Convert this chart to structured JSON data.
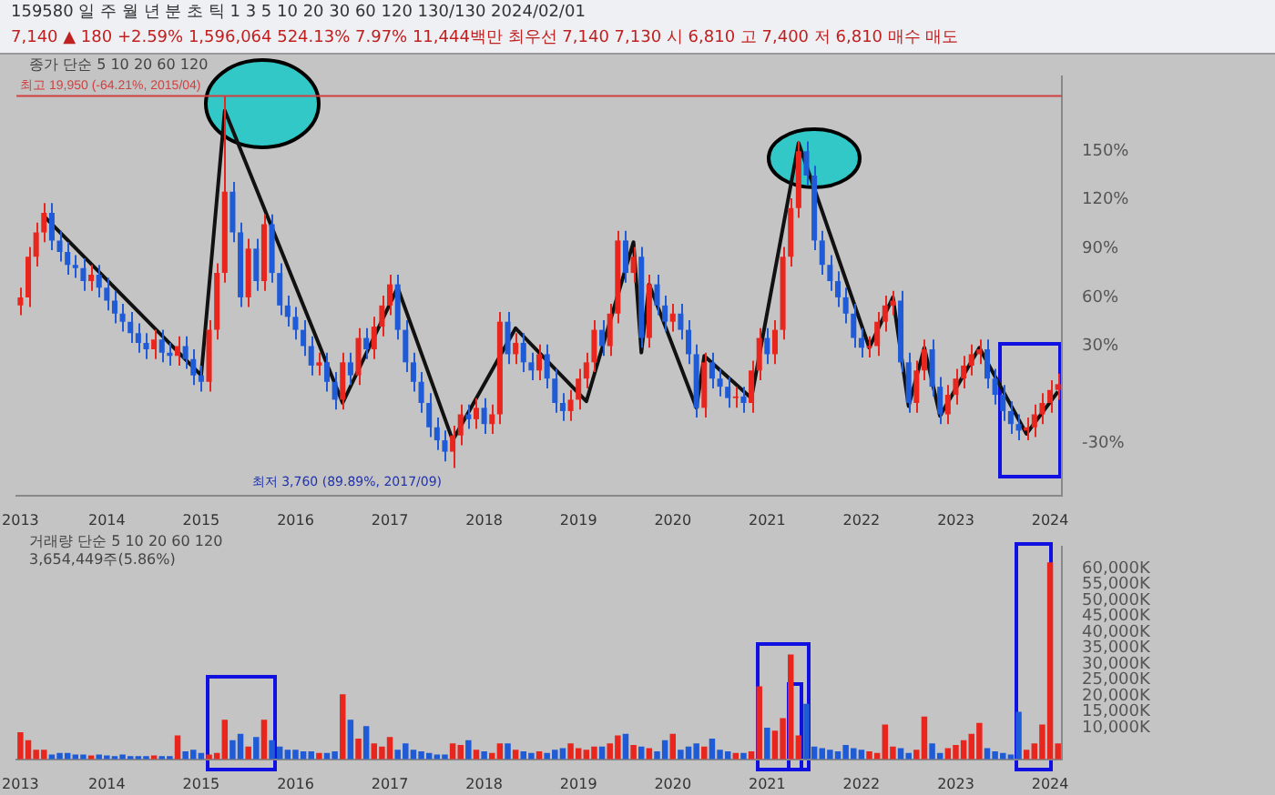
{
  "chart_data": [
    {
      "type": "candlestick",
      "categories": [
        "2013",
        null,
        null,
        null,
        null,
        null,
        null,
        null,
        null,
        null,
        null,
        "2014",
        null,
        null,
        null,
        null,
        null,
        null,
        null,
        null,
        null,
        null,
        null,
        "2015",
        null,
        null,
        null,
        null,
        null,
        null,
        null,
        null,
        null,
        null,
        null,
        "2016",
        null,
        null,
        null,
        null,
        null,
        null,
        null,
        null,
        null,
        null,
        null,
        "2017",
        null,
        null,
        null,
        null,
        null,
        null,
        null,
        null,
        null,
        null,
        null,
        "2018",
        null,
        null,
        null,
        null,
        null,
        null,
        null,
        null,
        null,
        null,
        null,
        "2019",
        null,
        null,
        null,
        null,
        null,
        null,
        null,
        null,
        null,
        null,
        null,
        "2020",
        null,
        null,
        null,
        null,
        null,
        null,
        null,
        null,
        null,
        null,
        null,
        "2021",
        null,
        null,
        null,
        null,
        null,
        null,
        null,
        null,
        null,
        null,
        null,
        "2022",
        null,
        null,
        null,
        null,
        null,
        null,
        null,
        null,
        null,
        null,
        null,
        "2023",
        null,
        null,
        null,
        null,
        null,
        null,
        null,
        null,
        null,
        null,
        null,
        "2024",
        null
      ],
      "ohlc": [
        [
          55,
          66,
          49,
          60
        ],
        [
          60,
          91,
          54,
          85
        ],
        [
          85,
          106,
          79,
          100
        ],
        [
          100,
          118,
          94,
          112
        ],
        [
          112,
          118,
          89,
          95
        ],
        [
          95,
          101,
          82,
          88
        ],
        [
          88,
          94,
          74,
          80
        ],
        [
          80,
          86,
          72,
          78
        ],
        [
          78,
          84,
          64,
          70
        ],
        [
          70,
          80,
          64,
          74
        ],
        [
          74,
          80,
          60,
          66
        ],
        [
          66,
          72,
          52,
          58
        ],
        [
          58,
          64,
          44,
          50
        ],
        [
          50,
          56,
          39,
          45
        ],
        [
          45,
          51,
          32,
          38
        ],
        [
          38,
          44,
          26,
          32
        ],
        [
          32,
          38,
          22,
          28
        ],
        [
          28,
          40,
          22,
          34
        ],
        [
          34,
          40,
          20,
          26
        ],
        [
          26,
          32,
          18,
          24
        ],
        [
          24,
          36,
          18,
          30
        ],
        [
          30,
          36,
          16,
          22
        ],
        [
          22,
          28,
          6,
          12
        ],
        [
          12,
          18,
          2,
          8
        ],
        [
          8,
          46,
          2,
          40
        ],
        [
          40,
          81,
          34,
          75
        ],
        [
          75,
          184,
          69,
          125
        ],
        [
          125,
          131,
          94,
          100
        ],
        [
          100,
          106,
          54,
          60
        ],
        [
          60,
          96,
          54,
          90
        ],
        [
          90,
          96,
          64,
          70
        ],
        [
          70,
          111,
          64,
          105
        ],
        [
          105,
          111,
          69,
          75
        ],
        [
          75,
          81,
          49,
          55
        ],
        [
          55,
          61,
          42,
          48
        ],
        [
          48,
          54,
          34,
          40
        ],
        [
          40,
          46,
          24,
          30
        ],
        [
          30,
          36,
          12,
          18
        ],
        [
          18,
          26,
          12,
          20
        ],
        [
          20,
          26,
          2,
          8
        ],
        [
          8,
          14,
          -9,
          -3
        ],
        [
          -3,
          26,
          -9,
          20
        ],
        [
          20,
          26,
          6,
          12
        ],
        [
          12,
          41,
          6,
          35
        ],
        [
          35,
          41,
          22,
          28
        ],
        [
          28,
          48,
          22,
          42
        ],
        [
          42,
          61,
          36,
          55
        ],
        [
          55,
          74,
          49,
          68
        ],
        [
          68,
          74,
          34,
          40
        ],
        [
          40,
          46,
          14,
          20
        ],
        [
          20,
          26,
          2,
          8
        ],
        [
          8,
          14,
          -11,
          -5
        ],
        [
          -5,
          1,
          -26,
          -20
        ],
        [
          -20,
          -14,
          -34,
          -28
        ],
        [
          -28,
          -22,
          -41,
          -35
        ],
        [
          -35,
          -19,
          -45,
          -25
        ],
        [
          -25,
          -6,
          -31,
          -12
        ],
        [
          -12,
          -6,
          -21,
          -15
        ],
        [
          -15,
          -2,
          -21,
          -8
        ],
        [
          -8,
          -2,
          -24,
          -18
        ],
        [
          -18,
          -6,
          -24,
          -12
        ],
        [
          -12,
          51,
          -18,
          45
        ],
        [
          45,
          51,
          19,
          25
        ],
        [
          25,
          38,
          19,
          32
        ],
        [
          32,
          38,
          14,
          20
        ],
        [
          20,
          26,
          9,
          15
        ],
        [
          15,
          31,
          9,
          25
        ],
        [
          25,
          31,
          4,
          10
        ],
        [
          10,
          16,
          -11,
          -5
        ],
        [
          -5,
          1,
          -16,
          -10
        ],
        [
          -10,
          3,
          -16,
          -3
        ],
        [
          -3,
          16,
          -9,
          10
        ],
        [
          10,
          26,
          4,
          20
        ],
        [
          20,
          46,
          14,
          40
        ],
        [
          40,
          46,
          24,
          30
        ],
        [
          30,
          56,
          24,
          50
        ],
        [
          50,
          101,
          44,
          95
        ],
        [
          95,
          101,
          69,
          75
        ],
        [
          75,
          91,
          69,
          85
        ],
        [
          85,
          91,
          29,
          35
        ],
        [
          35,
          74,
          29,
          68
        ],
        [
          68,
          74,
          49,
          55
        ],
        [
          55,
          61,
          39,
          45
        ],
        [
          45,
          56,
          39,
          50
        ],
        [
          50,
          56,
          34,
          40
        ],
        [
          40,
          46,
          19,
          25
        ],
        [
          25,
          31,
          -14,
          -8
        ],
        [
          -8,
          26,
          -14,
          20
        ],
        [
          20,
          26,
          4,
          10
        ],
        [
          10,
          16,
          -1,
          5
        ],
        [
          5,
          11,
          -8,
          -2
        ],
        [
          -2,
          5,
          -8,
          -1
        ],
        [
          -1,
          5,
          -11,
          -5
        ],
        [
          -5,
          21,
          -11,
          15
        ],
        [
          15,
          41,
          9,
          35
        ],
        [
          35,
          41,
          19,
          25
        ],
        [
          25,
          46,
          19,
          40
        ],
        [
          40,
          91,
          34,
          85
        ],
        [
          85,
          121,
          79,
          115
        ],
        [
          115,
          156,
          109,
          150
        ],
        [
          150,
          156,
          129,
          135
        ],
        [
          135,
          141,
          89,
          95
        ],
        [
          95,
          101,
          74,
          80
        ],
        [
          80,
          86,
          64,
          70
        ],
        [
          70,
          76,
          54,
          60
        ],
        [
          60,
          66,
          44,
          50
        ],
        [
          50,
          56,
          29,
          35
        ],
        [
          35,
          41,
          23,
          29
        ],
        [
          29,
          36,
          23,
          30
        ],
        [
          30,
          51,
          24,
          45
        ],
        [
          45,
          61,
          39,
          55
        ],
        [
          55,
          64,
          49,
          58
        ],
        [
          58,
          64,
          14,
          20
        ],
        [
          20,
          26,
          -11,
          -5
        ],
        [
          -5,
          21,
          -11,
          15
        ],
        [
          15,
          34,
          9,
          28
        ],
        [
          28,
          34,
          -1,
          5
        ],
        [
          5,
          11,
          -18,
          -12
        ],
        [
          -12,
          6,
          -18,
          0
        ],
        [
          0,
          16,
          -6,
          10
        ],
        [
          10,
          24,
          4,
          18
        ],
        [
          18,
          31,
          12,
          25
        ],
        [
          25,
          34,
          19,
          28
        ],
        [
          28,
          34,
          4,
          10
        ],
        [
          10,
          16,
          -6,
          0
        ],
        [
          0,
          6,
          -16,
          -10
        ],
        [
          -10,
          -4,
          -24,
          -18
        ],
        [
          -18,
          -12,
          -28,
          -22
        ],
        [
          -22,
          -14,
          -28,
          -20
        ],
        [
          -20,
          -6,
          -26,
          -12
        ],
        [
          -12,
          1,
          -18,
          -5
        ],
        [
          -5,
          9,
          -11,
          3
        ],
        [
          3,
          13,
          -3,
          6.57
        ]
      ],
      "colors": [
        "#e8261e",
        "#e8261e",
        "#e8261e",
        "#e8261e",
        "#1f5bd6",
        "#1f5bd6",
        "#1f5bd6",
        "#1f5bd6",
        "#1f5bd6",
        "#e8261e",
        "#1f5bd6",
        "#1f5bd6",
        "#1f5bd6",
        "#1f5bd6",
        "#1f5bd6",
        "#1f5bd6",
        "#1f5bd6",
        "#e8261e",
        "#1f5bd6",
        "#1f5bd6",
        "#e8261e",
        "#1f5bd6",
        "#1f5bd6",
        "#1f5bd6",
        "#e8261e",
        "#e8261e",
        "#e8261e",
        "#1f5bd6",
        "#1f5bd6",
        "#e8261e",
        "#1f5bd6",
        "#e8261e",
        "#1f5bd6",
        "#1f5bd6",
        "#1f5bd6",
        "#1f5bd6",
        "#1f5bd6",
        "#1f5bd6",
        "#e8261e",
        "#1f5bd6",
        "#1f5bd6",
        "#e8261e",
        "#1f5bd6",
        "#e8261e",
        "#1f5bd6",
        "#e8261e",
        "#e8261e",
        "#e8261e",
        "#1f5bd6",
        "#1f5bd6",
        "#1f5bd6",
        "#1f5bd6",
        "#1f5bd6",
        "#1f5bd6",
        "#1f5bd6",
        "#e8261e",
        "#e8261e",
        "#1f5bd6",
        "#e8261e",
        "#1f5bd6",
        "#e8261e",
        "#e8261e",
        "#1f5bd6",
        "#e8261e",
        "#1f5bd6",
        "#1f5bd6",
        "#e8261e",
        "#1f5bd6",
        "#1f5bd6",
        "#1f5bd6",
        "#e8261e",
        "#e8261e",
        "#e8261e",
        "#e8261e",
        "#1f5bd6",
        "#e8261e",
        "#e8261e",
        "#1f5bd6",
        "#e8261e",
        "#1f5bd6",
        "#e8261e",
        "#1f5bd6",
        "#1f5bd6",
        "#e8261e",
        "#1f5bd6",
        "#1f5bd6",
        "#1f5bd6",
        "#e8261e",
        "#1f5bd6",
        "#1f5bd6",
        "#1f5bd6",
        "#e8261e",
        "#1f5bd6",
        "#e8261e",
        "#e8261e",
        "#1f5bd6",
        "#e8261e",
        "#e8261e",
        "#e8261e",
        "#e8261e",
        "#1f5bd6",
        "#1f5bd6",
        "#1f5bd6",
        "#1f5bd6",
        "#1f5bd6",
        "#1f5bd6",
        "#1f5bd6",
        "#1f5bd6",
        "#e8261e",
        "#e8261e",
        "#e8261e",
        "#e8261e",
        "#1f5bd6",
        "#1f5bd6",
        "#e8261e",
        "#e8261e",
        "#1f5bd6",
        "#1f5bd6",
        "#e8261e",
        "#e8261e",
        "#e8261e",
        "#e8261e",
        "#e8261e",
        "#1f5bd6",
        "#1f5bd6",
        "#1f5bd6",
        "#1f5bd6",
        "#1f5bd6",
        "#e8261e",
        "#e8261e",
        "#e8261e",
        "#e8261e",
        "#e8261e"
      ],
      "series": [
        {
          "type": "line",
          "color": "#111111",
          "values": [
            null,
            null,
            null,
            110,
            null,
            null,
            null,
            null,
            null,
            null,
            null,
            null,
            null,
            null,
            null,
            null,
            null,
            null,
            null,
            null,
            null,
            null,
            null,
            12,
            null,
            null,
            175,
            null,
            null,
            null,
            null,
            null,
            null,
            null,
            null,
            null,
            null,
            null,
            null,
            null,
            null,
            -5,
            null,
            null,
            null,
            null,
            null,
            null,
            66,
            null,
            null,
            null,
            null,
            null,
            null,
            -28,
            null,
            null,
            null,
            null,
            null,
            null,
            null,
            41,
            null,
            null,
            null,
            null,
            null,
            null,
            null,
            null,
            -4,
            null,
            null,
            null,
            null,
            null,
            94,
            26,
            68,
            null,
            null,
            null,
            null,
            null,
            -8,
            24,
            null,
            null,
            null,
            null,
            null,
            -2,
            null,
            null,
            null,
            null,
            null,
            155,
            null,
            null,
            null,
            null,
            null,
            null,
            null,
            null,
            29,
            null,
            null,
            60,
            null,
            -7,
            null,
            29,
            null,
            -13,
            null,
            null,
            null,
            null,
            29,
            null,
            null,
            null,
            null,
            null,
            -24,
            null,
            null,
            null,
            2
          ]
        }
      ],
      "ylim": [
        -62,
        196
      ],
      "yticks": [
        {
          "value": 150,
          "label": "150%"
        },
        {
          "value": 120,
          "label": "120%"
        },
        {
          "value": 90,
          "label": "90%"
        },
        {
          "value": 60,
          "label": "60%"
        },
        {
          "value": 30,
          "label": "30%"
        },
        {
          "value": -30,
          "label": "-30%"
        }
      ],
      "marker": "none",
      "ref_lines": [
        {
          "axis": "y",
          "value": 184,
          "label": "최고 19,950 (-64.21%, 2015/04)",
          "color": "#d04040"
        }
      ],
      "annotations": [
        "159580 일 주 월 년 분 초 틱 1 3 5 10 20 30 60 120 130/130 2024/02/01",
        "7,140 ▲ 180 +2.59% 1,596,064 524.13% 7.97% 11,444백만 최우선 7,140 7,130 시 6,810 고 7,400 저 6,810 매수 매도",
        "종가 단순 5 10 20 60 120",
        "최저 3,760 (89.89%, 2017/09)"
      ]
    },
    {
      "type": "bar",
      "categories": [
        "2013",
        null,
        null,
        null,
        null,
        null,
        null,
        null,
        null,
        null,
        null,
        "2014",
        null,
        null,
        null,
        null,
        null,
        null,
        null,
        null,
        null,
        null,
        null,
        "2015",
        null,
        null,
        null,
        null,
        null,
        null,
        null,
        null,
        null,
        null,
        null,
        "2016",
        null,
        null,
        null,
        null,
        null,
        null,
        null,
        null,
        null,
        null,
        null,
        "2017",
        null,
        null,
        null,
        null,
        null,
        null,
        null,
        null,
        null,
        null,
        null,
        "2018",
        null,
        null,
        null,
        null,
        null,
        null,
        null,
        null,
        null,
        null,
        null,
        "2019",
        null,
        null,
        null,
        null,
        null,
        null,
        null,
        null,
        null,
        null,
        null,
        "2020",
        null,
        null,
        null,
        null,
        null,
        null,
        null,
        null,
        null,
        null,
        null,
        "2021",
        null,
        null,
        null,
        null,
        null,
        null,
        null,
        null,
        null,
        null,
        null,
        "2022",
        null,
        null,
        null,
        null,
        null,
        null,
        null,
        null,
        null,
        null,
        null,
        "2023",
        null,
        null,
        null,
        null,
        null,
        null,
        null,
        null,
        null,
        null,
        null,
        "2024",
        null
      ],
      "values": [
        8500,
        6000,
        3000,
        3000,
        1500,
        2000,
        2000,
        1500,
        1500,
        1200,
        1500,
        1200,
        1000,
        1500,
        1000,
        1000,
        1000,
        1200,
        1000,
        1000,
        7500,
        2500,
        3000,
        2000,
        1500,
        2000,
        12500,
        6000,
        8000,
        4000,
        7000,
        12500,
        6000,
        4000,
        3000,
        3000,
        2500,
        2500,
        2000,
        2000,
        2500,
        20500,
        12500,
        6500,
        10500,
        5000,
        4000,
        7000,
        3000,
        5000,
        3000,
        2500,
        2000,
        1500,
        1500,
        5000,
        4500,
        6000,
        3000,
        2500,
        2000,
        5000,
        5000,
        3000,
        2500,
        2000,
        2500,
        2000,
        3000,
        3500,
        5000,
        3500,
        3000,
        4000,
        4000,
        5000,
        7500,
        8000,
        4500,
        4000,
        3500,
        2500,
        6000,
        8000,
        3000,
        4000,
        5000,
        4000,
        6500,
        3000,
        2500,
        2000,
        2000,
        2500,
        23000,
        10000,
        9000,
        13000,
        33000,
        7500,
        17500,
        4000,
        3500,
        3000,
        2500,
        4500,
        3500,
        3000,
        2500,
        2000,
        11000,
        4000,
        3500,
        2000,
        3000,
        13500,
        5000,
        2000,
        3500,
        4500,
        6000,
        8000,
        11500,
        3500,
        2500,
        2000,
        1500,
        15000,
        3000,
        5000,
        11000,
        62000,
        5000
      ],
      "colors": [
        "#e8261e",
        "#e8261e",
        "#e8261e",
        "#e8261e",
        "#1f5bd6",
        "#1f5bd6",
        "#1f5bd6",
        "#1f5bd6",
        "#1f5bd6",
        "#e8261e",
        "#1f5bd6",
        "#1f5bd6",
        "#1f5bd6",
        "#1f5bd6",
        "#1f5bd6",
        "#1f5bd6",
        "#1f5bd6",
        "#e8261e",
        "#1f5bd6",
        "#1f5bd6",
        "#e8261e",
        "#1f5bd6",
        "#1f5bd6",
        "#1f5bd6",
        "#e8261e",
        "#e8261e",
        "#e8261e",
        "#1f5bd6",
        "#1f5bd6",
        "#e8261e",
        "#1f5bd6",
        "#e8261e",
        "#1f5bd6",
        "#1f5bd6",
        "#1f5bd6",
        "#1f5bd6",
        "#1f5bd6",
        "#1f5bd6",
        "#e8261e",
        "#1f5bd6",
        "#1f5bd6",
        "#e8261e",
        "#1f5bd6",
        "#e8261e",
        "#1f5bd6",
        "#e8261e",
        "#e8261e",
        "#e8261e",
        "#1f5bd6",
        "#1f5bd6",
        "#1f5bd6",
        "#1f5bd6",
        "#1f5bd6",
        "#1f5bd6",
        "#1f5bd6",
        "#e8261e",
        "#e8261e",
        "#1f5bd6",
        "#e8261e",
        "#1f5bd6",
        "#e8261e",
        "#e8261e",
        "#1f5bd6",
        "#e8261e",
        "#1f5bd6",
        "#1f5bd6",
        "#e8261e",
        "#1f5bd6",
        "#1f5bd6",
        "#1f5bd6",
        "#e8261e",
        "#e8261e",
        "#e8261e",
        "#e8261e",
        "#1f5bd6",
        "#e8261e",
        "#e8261e",
        "#1f5bd6",
        "#e8261e",
        "#1f5bd6",
        "#e8261e",
        "#1f5bd6",
        "#1f5bd6",
        "#e8261e",
        "#1f5bd6",
        "#1f5bd6",
        "#1f5bd6",
        "#e8261e",
        "#1f5bd6",
        "#1f5bd6",
        "#1f5bd6",
        "#e8261e",
        "#1f5bd6",
        "#e8261e",
        "#e8261e",
        "#1f5bd6",
        "#e8261e",
        "#e8261e",
        "#e8261e",
        "#e8261e",
        "#1f5bd6",
        "#1f5bd6",
        "#1f5bd6",
        "#1f5bd6",
        "#1f5bd6",
        "#1f5bd6",
        "#1f5bd6",
        "#1f5bd6",
        "#e8261e",
        "#e8261e",
        "#e8261e",
        "#e8261e",
        "#1f5bd6",
        "#1f5bd6",
        "#e8261e",
        "#e8261e",
        "#1f5bd6",
        "#1f5bd6",
        "#e8261e",
        "#e8261e",
        "#e8261e",
        "#e8261e",
        "#e8261e",
        "#1f5bd6",
        "#1f5bd6",
        "#1f5bd6",
        "#1f5bd6",
        "#1f5bd6",
        "#e8261e",
        "#e8261e",
        "#e8261e",
        "#e8261e",
        "#e8261e"
      ],
      "ylim": [
        0,
        67000
      ],
      "yticks": [
        {
          "value": 60000,
          "label": "60,000K"
        },
        {
          "value": 55000,
          "label": "55,000K"
        },
        {
          "value": 50000,
          "label": "50,000K"
        },
        {
          "value": 45000,
          "label": "45,000K"
        },
        {
          "value": 40000,
          "label": "40,000K"
        },
        {
          "value": 35000,
          "label": "35,000K"
        },
        {
          "value": 30000,
          "label": "30,000K"
        },
        {
          "value": 25000,
          "label": "25,000K"
        },
        {
          "value": 20000,
          "label": "20,000K"
        },
        {
          "value": 15000,
          "label": "15,000K"
        },
        {
          "value": 10000,
          "label": "10,000K"
        }
      ],
      "annotations": [
        "거래량 단순 5 10 20 60 120",
        "3,654,449주(5.86%)"
      ]
    }
  ]
}
